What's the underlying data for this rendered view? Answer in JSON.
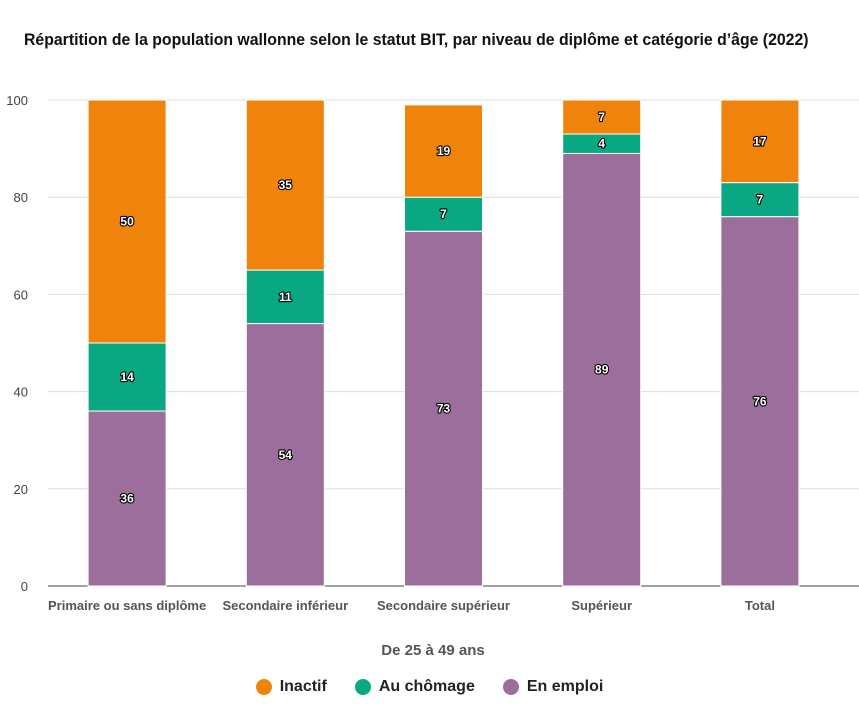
{
  "chart_data": {
    "type": "bar",
    "stacked": true,
    "title": "Répartition de la population wallonne selon le statut BIT, par niveau de diplôme et catégorie d’âge (2022)",
    "xlabel": "De 25 à 49 ans",
    "ylabel": "",
    "ylim": [
      0,
      100
    ],
    "yticks": [
      0,
      20,
      40,
      60,
      80,
      100
    ],
    "grid": true,
    "legend_position": "bottom",
    "categories": [
      "Primaire ou sans diplôme",
      "Secondaire inférieur",
      "Secondaire supérieur",
      "Supérieur",
      "Total"
    ],
    "series": [
      {
        "name": "En emploi",
        "color": "#9b6e9c",
        "values": [
          36,
          54,
          73,
          89,
          76
        ]
      },
      {
        "name": "Au chômage",
        "color": "#0aa882",
        "values": [
          14,
          11,
          7,
          4,
          7
        ]
      },
      {
        "name": "Inactif",
        "color": "#f0830c",
        "values": [
          50,
          35,
          19,
          7,
          17
        ]
      }
    ],
    "legend_order": [
      "Inactif",
      "Au chômage",
      "En emploi"
    ]
  }
}
